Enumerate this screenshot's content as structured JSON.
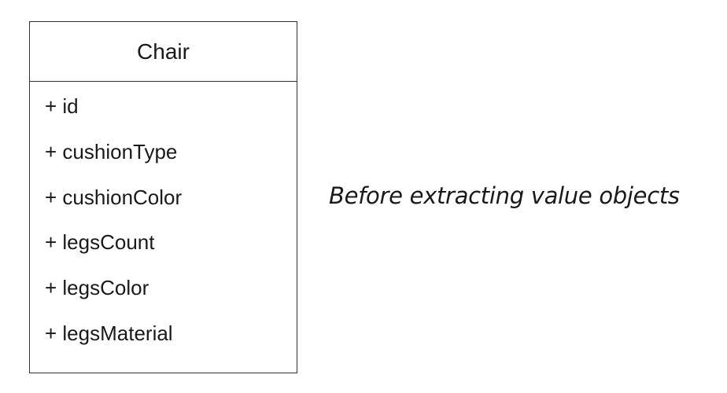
{
  "class_box": {
    "name": "Chair",
    "attributes": [
      "+ id",
      "+ cushionType",
      "+ cushionColor",
      "+ legsCount",
      "+ legsColor",
      "+ legsMaterial"
    ]
  },
  "caption": "Before extracting value objects",
  "colors": {
    "border": "#333333",
    "text": "#1a1a1a",
    "background": "#ffffff"
  }
}
